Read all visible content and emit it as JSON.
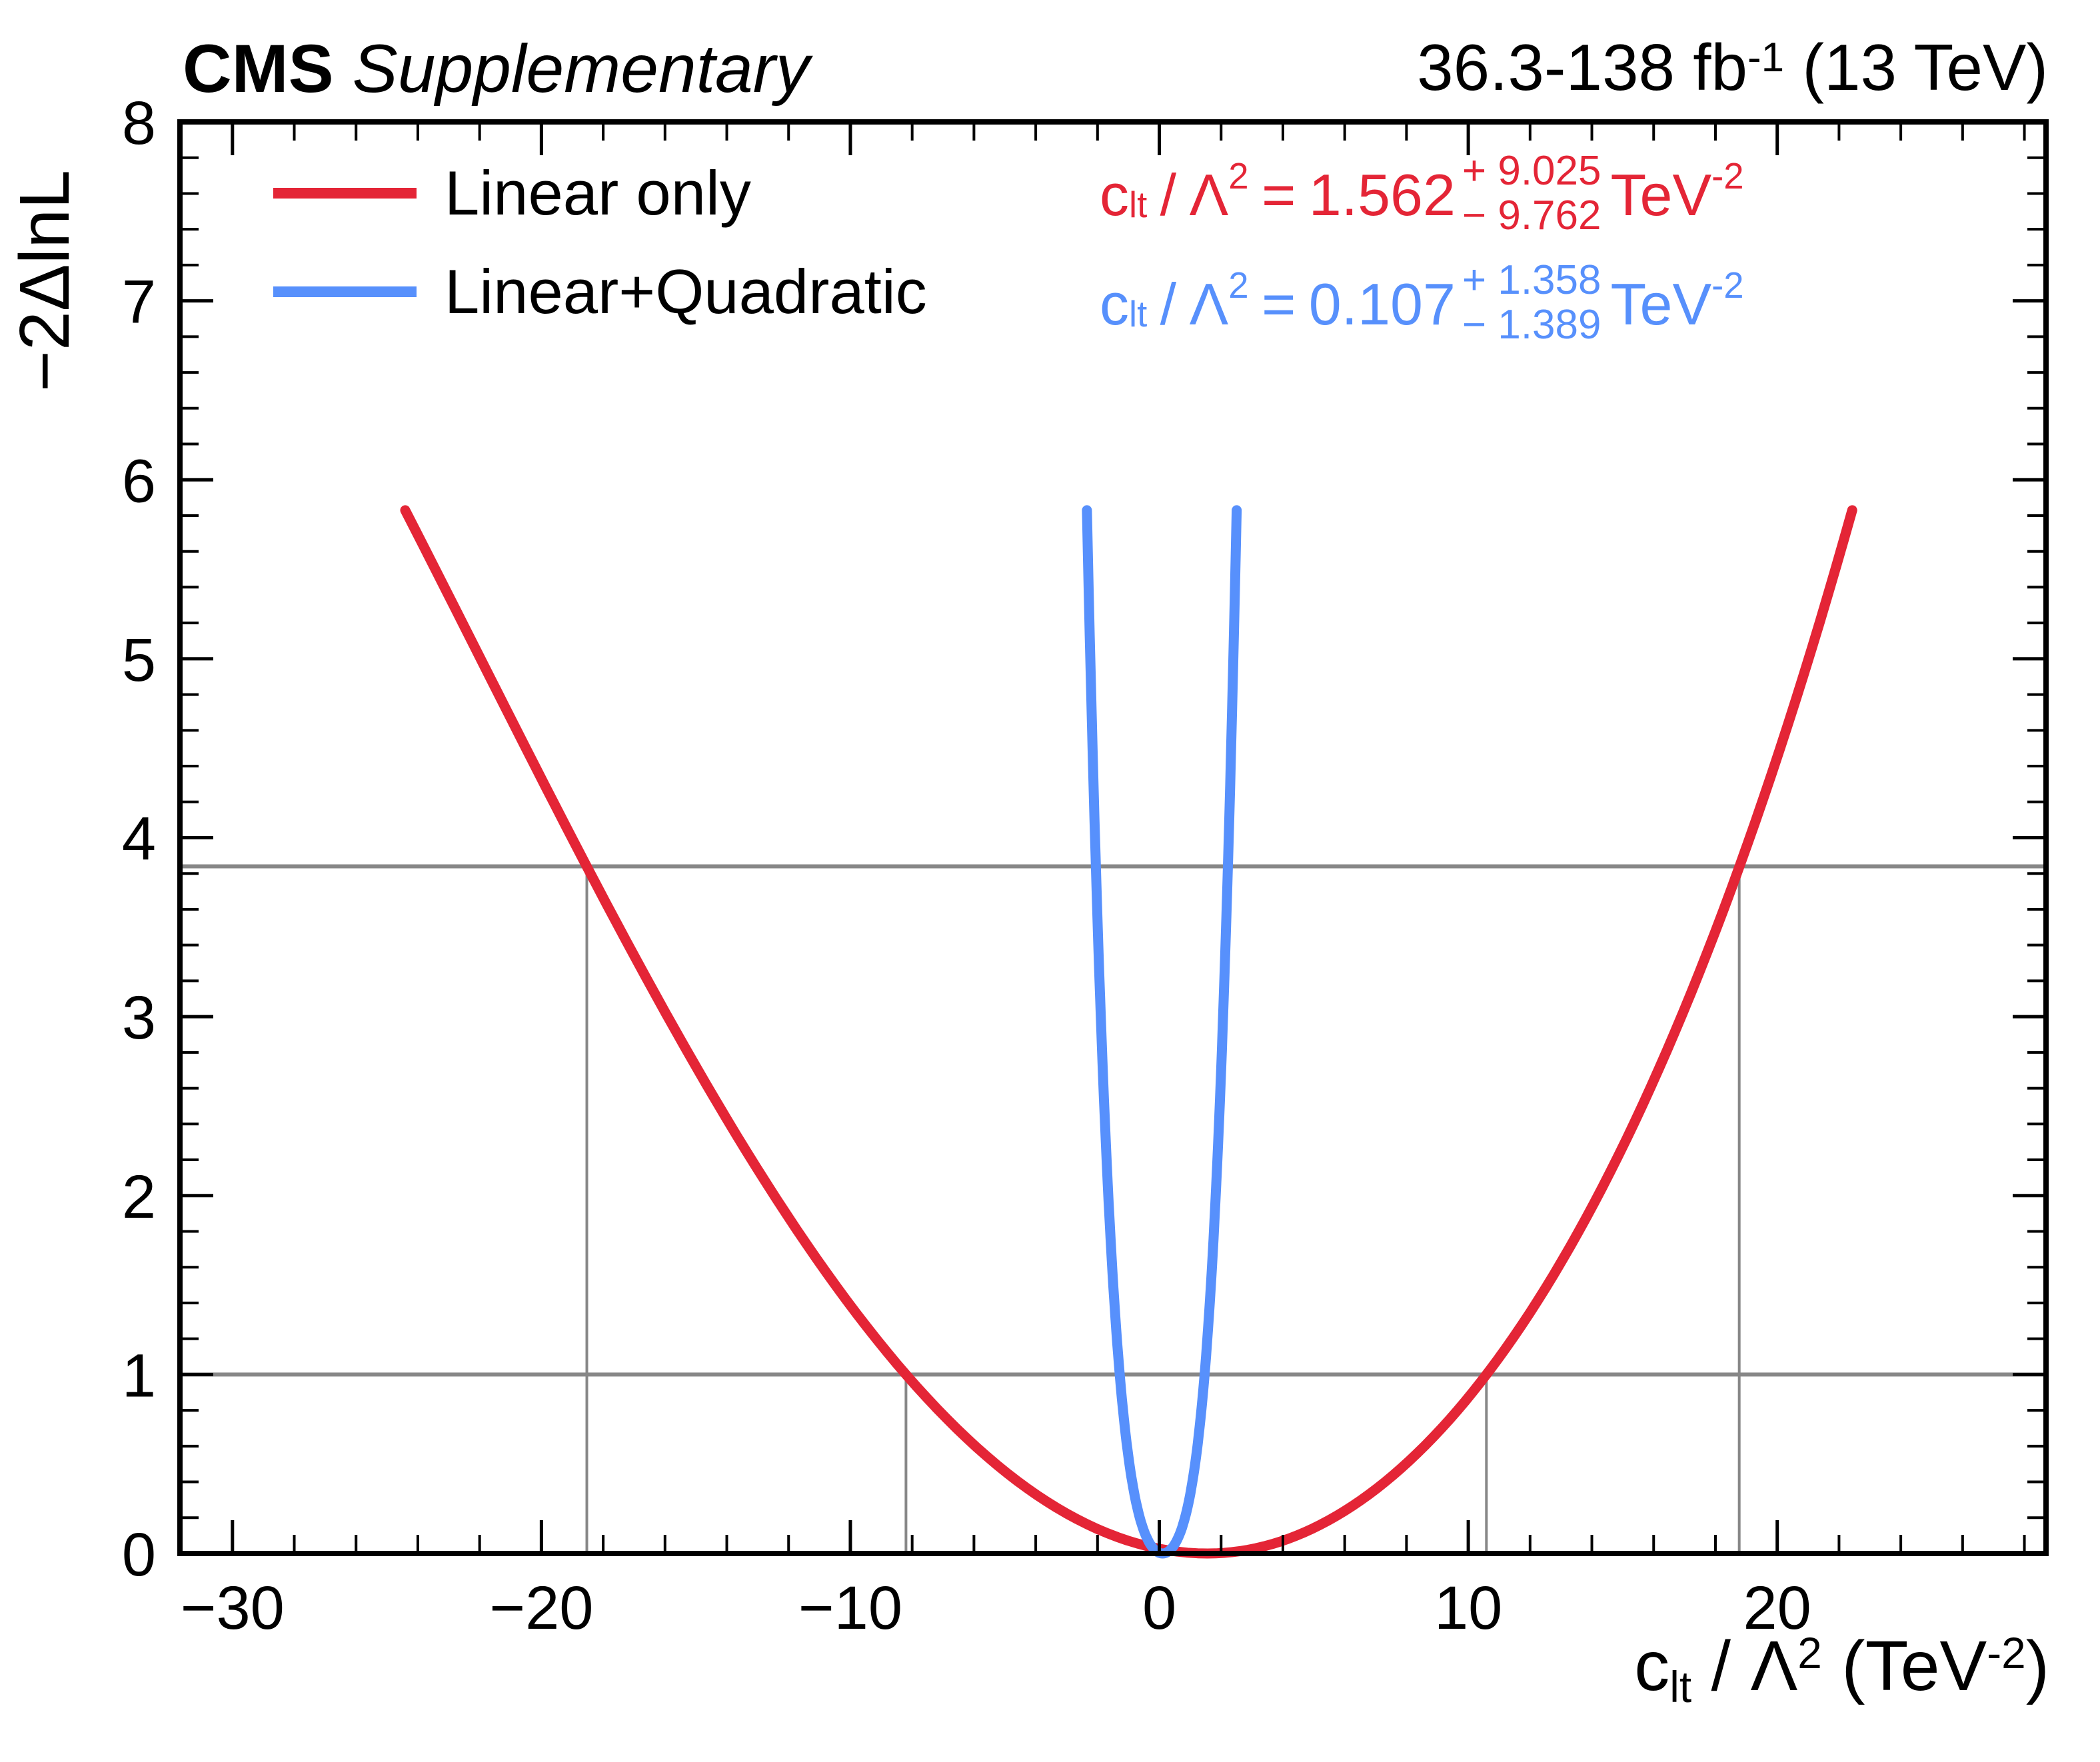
{
  "header": {
    "experiment": "CMS",
    "label": "Supplementary",
    "lumi": "36.3-138 fb",
    "lumi_exp": "-1",
    "energy": "(13 TeV)"
  },
  "legend": {
    "items": [
      {
        "label": "Linear only",
        "color": "#e42536"
      },
      {
        "label": "Linear+Quadratic",
        "color": "#5790fc"
      }
    ]
  },
  "results": [
    {
      "color": "#e42536",
      "coeff": "c",
      "coeff_sub": "lt",
      "slash": "/",
      "lambda": "Λ",
      "lambda_exp": "2",
      "equals": "=",
      "value": "1.562",
      "err_up": "+ 9.025",
      "err_down": "− 9.762",
      "unit": "TeV",
      "unit_exp": "-2"
    },
    {
      "color": "#5790fc",
      "coeff": "c",
      "coeff_sub": "lt",
      "slash": "/",
      "lambda": "Λ",
      "lambda_exp": "2",
      "equals": "=",
      "value": "0.107",
      "err_up": "+ 1.358",
      "err_down": "− 1.389",
      "unit": "TeV",
      "unit_exp": "-2"
    }
  ],
  "x_axis": {
    "coeff": "c",
    "coeff_sub": "lt",
    "slash": " / ",
    "lambda": "Λ",
    "lambda_exp": "2",
    "unit_open": "(TeV",
    "unit_exp": "-2",
    "unit_close": ")"
  },
  "y_axis": {
    "title": "−2ΔlnL"
  },
  "chart_data": {
    "type": "line",
    "title": "CMS Supplementary likelihood scan",
    "xlabel": "c_lt / Lambda^2 (TeV^-2)",
    "ylabel": "-2*Delta(lnL)",
    "xlim": [
      -31.7,
      28.7
    ],
    "ylim": [
      0,
      8
    ],
    "grid": false,
    "x_ticks": [
      {
        "v": -30,
        "label": "−30"
      },
      {
        "v": -20,
        "label": "−20"
      },
      {
        "v": -10,
        "label": "−10"
      },
      {
        "v": 0,
        "label": "0"
      },
      {
        "v": 10,
        "label": "10"
      },
      {
        "v": 20,
        "label": "20"
      }
    ],
    "x_minor_step": 2,
    "y_ticks": [
      {
        "v": 0,
        "label": "0"
      },
      {
        "v": 1,
        "label": "1"
      },
      {
        "v": 2,
        "label": "2"
      },
      {
        "v": 3,
        "label": "3"
      },
      {
        "v": 4,
        "label": "4"
      },
      {
        "v": 5,
        "label": "5"
      },
      {
        "v": 6,
        "label": "6"
      },
      {
        "v": 7,
        "label": "7"
      },
      {
        "v": 8,
        "label": "8"
      }
    ],
    "y_minor_step": 0.2,
    "confidence_y": [
      1.0,
      3.84
    ],
    "line_colors": {
      "confidence": "#878787",
      "frame": "#000000"
    },
    "series": [
      {
        "name": "Linear only",
        "color": "#e42536",
        "best_fit": 1.562,
        "err_up": 9.025,
        "err_down": 9.762,
        "shape": {
          "plus": {
            "c2": 0.979,
            "c4": 0.0209
          },
          "minus": {
            "c2": 1.029,
            "c4": -0.029
          }
        },
        "scan_y_max": 5.83,
        "ci_crossings": [
          {
            "y": 1.0,
            "x": [
              -8.2,
              10.587
            ]
          },
          {
            "y": 3.84,
            "x": [
              -18.53,
              18.77
            ]
          }
        ]
      },
      {
        "name": "Linear+Quadratic",
        "color": "#5790fc",
        "best_fit": 0.107,
        "err_up": 1.358,
        "err_down": 1.389,
        "shape": {
          "plus": {
            "c2": 0.587,
            "c4": 0.413
          },
          "minus": {
            "c2": 0.587,
            "c4": 0.413
          }
        },
        "scan_y_max": 5.83,
        "ci_crossings": []
      }
    ]
  }
}
